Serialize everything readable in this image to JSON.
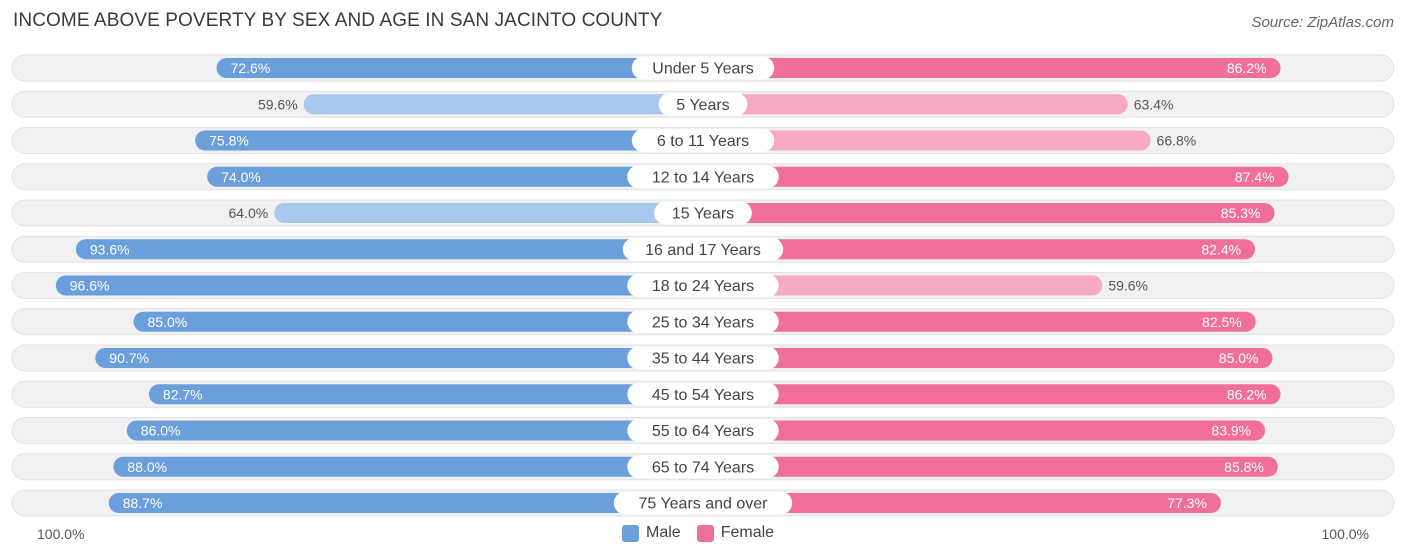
{
  "header": {
    "title": "INCOME ABOVE POVERTY BY SEX AND AGE IN SAN JACINTO COUNTY",
    "source": "Source: ZipAtlas.com"
  },
  "axis": {
    "left_label": "100.0%",
    "right_label": "100.0%"
  },
  "legend": {
    "male_label": "Male",
    "female_label": "Female"
  },
  "colors": {
    "male_strong": "#6a9fdb",
    "male_light": "#a9c8ee",
    "female_strong": "#f06f99",
    "female_light": "#f7a8c2",
    "track": "#f1f1f3"
  },
  "chart_data": {
    "type": "bar",
    "orientation": "diverging-horizontal",
    "title": "INCOME ABOVE POVERTY BY SEX AND AGE IN SAN JACINTO COUNTY",
    "xlim": [
      0,
      100
    ],
    "unit": "%",
    "categories": [
      "Under 5 Years",
      "5 Years",
      "6 to 11 Years",
      "12 to 14 Years",
      "15 Years",
      "16 and 17 Years",
      "18 to 24 Years",
      "25 to 34 Years",
      "35 to 44 Years",
      "45 to 54 Years",
      "55 to 64 Years",
      "65 to 74 Years",
      "75 Years and over"
    ],
    "series": [
      {
        "name": "Male",
        "values": [
          72.6,
          59.6,
          75.8,
          74.0,
          64.0,
          93.6,
          96.6,
          85.0,
          90.7,
          82.7,
          86.0,
          88.0,
          88.7
        ],
        "labels": [
          "72.6%",
          "59.6%",
          "75.8%",
          "74.0%",
          "64.0%",
          "93.6%",
          "96.6%",
          "85.0%",
          "90.7%",
          "82.7%",
          "86.0%",
          "88.0%",
          "88.7%"
        ]
      },
      {
        "name": "Female",
        "values": [
          86.2,
          63.4,
          66.8,
          87.4,
          85.3,
          82.4,
          59.6,
          82.5,
          85.0,
          86.2,
          83.9,
          85.8,
          77.3
        ],
        "labels": [
          "86.2%",
          "63.4%",
          "66.8%",
          "87.4%",
          "85.3%",
          "82.4%",
          "59.6%",
          "82.5%",
          "85.0%",
          "86.2%",
          "83.9%",
          "85.8%",
          "77.3%"
        ]
      }
    ]
  }
}
